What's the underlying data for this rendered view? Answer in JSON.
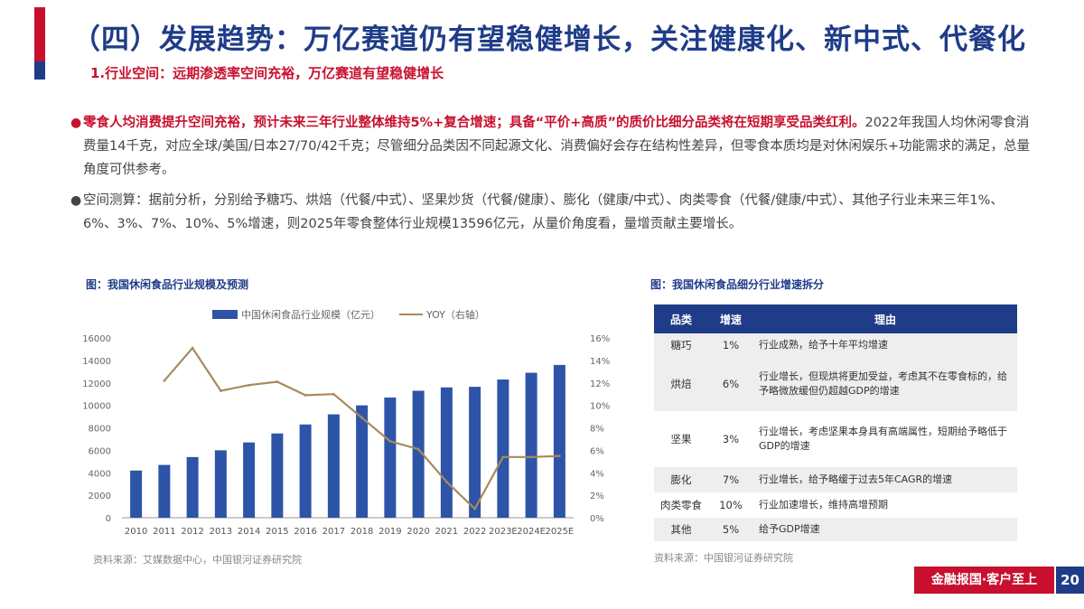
{
  "header": {
    "title": "（四）发展趋势：万亿赛道仍有望稳健增长，关注健康化、新中式、代餐化",
    "subtitle": "1.行业空间：远期渗透率空间充裕，万亿赛道有望稳健增长"
  },
  "bullets": [
    {
      "marker": "●",
      "bold": "零食人均消费提升空间充裕，预计未来三年行业整体维持5%+复合增速；具备“平价+高质”的质价比细分品类将在短期享受品类红利。",
      "text": "2022年我国人均休闲零食消费量14千克，对应全球/美国/日本27/70/42千克；尽管细分品类因不同起源文化、消费偏好会存在结构性差异，但零食本质均是对休闲娱乐+功能需求的满足，总量角度可供参考。"
    },
    {
      "marker": "●",
      "bold": "",
      "text": "空间测算：据前分析，分别给予糖巧、烘焙（代餐/中式）、坚果炒货（代餐/健康）、膨化（健康/中式）、肉类零食（代餐/健康/中式）、其他子行业未来三年1%、6%、3%、7%、10%、5%增速，则2025年零食整体行业规模13596亿元，从量价角度看，量增贡献主要增长。"
    }
  ],
  "left_figure": {
    "caption": "图：我国休闲食品行业规模及预测",
    "source": "资料来源：艾媒数据中心，中国银河证券研究院"
  },
  "right_figure": {
    "caption": "图：我国休闲食品细分行业增速拆分",
    "source": "资料来源：中国银河证券研究院",
    "headers": [
      "品类",
      "增速",
      "理由"
    ],
    "rows": [
      {
        "cat": "糖巧",
        "rate": "1%",
        "reason": "行业成熟，给予十年平均增速"
      },
      {
        "cat": "烘焙",
        "rate": "6%",
        "reason": "行业增长，但现烘将更加受益，考虑其不在零食标的，给予略微放缓但仍超越GDP的增速"
      },
      {
        "cat": "坚果",
        "rate": "3%",
        "reason": "行业增长，考虑坚果本身具有高端属性，短期给予略低于GDP的增速"
      },
      {
        "cat": "膨化",
        "rate": "7%",
        "reason": "行业增长，给予略缓于过去5年CAGR的增速"
      },
      {
        "cat": "肉类零食",
        "rate": "10%",
        "reason": "行业加速增长，维持高增预期"
      },
      {
        "cat": "其他",
        "rate": "5%",
        "reason": "给予GDP增速"
      }
    ]
  },
  "footer": {
    "slogan": "金融报国·客户至上",
    "page": "20"
  },
  "colors": {
    "brand_blue": "#1f3c88",
    "brand_red": "#c8102e",
    "bar_blue": "#2e54a8",
    "line_gold": "#a88a5c"
  },
  "chart_data": {
    "type": "bar",
    "categories": [
      "2010",
      "2011",
      "2012",
      "2013",
      "2014",
      "2015",
      "2016",
      "2017",
      "2018",
      "2019",
      "2020",
      "2021",
      "2022",
      "2023E",
      "2024E",
      "2025E"
    ],
    "series": [
      {
        "name": "中国休闲食品行业规模（亿元）",
        "type": "bar",
        "axis": "left",
        "values": [
          4200,
          4700,
          5400,
          6000,
          6700,
          7500,
          8300,
          9200,
          10000,
          10700,
          11300,
          11600,
          11650,
          12300,
          12900,
          13596
        ]
      },
      {
        "name": "YOY（右轴）",
        "type": "line",
        "axis": "right",
        "values": [
          null,
          12.2,
          15.1,
          11.3,
          11.8,
          12.1,
          10.9,
          11.0,
          8.9,
          6.8,
          6.1,
          3.2,
          0.8,
          5.4,
          5.4,
          5.5
        ]
      }
    ],
    "y_left": {
      "min": 0,
      "max": 16000,
      "ticks": [
        "0",
        "2000",
        "4000",
        "6000",
        "8000",
        "10000",
        "12000",
        "14000",
        "16000"
      ]
    },
    "y_right": {
      "min": 0,
      "max": 16,
      "ticks": [
        "0%",
        "2%",
        "4%",
        "6%",
        "8%",
        "10%",
        "12%",
        "14%",
        "16%"
      ]
    },
    "grid": false,
    "legend_position": "top"
  }
}
